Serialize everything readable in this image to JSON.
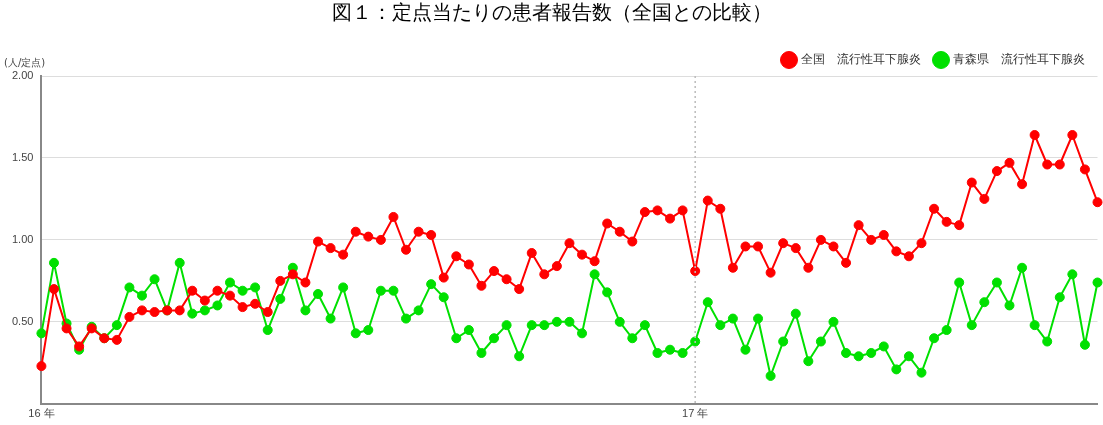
{
  "chart_data": {
    "type": "line",
    "title": "図１：定点当たりの患者報告数（全国との比較）",
    "ylabel": "(人/定点)",
    "categories": [
      "16 年",
      null,
      null,
      null,
      null,
      null,
      null,
      null,
      null,
      null,
      null,
      null,
      null,
      null,
      null,
      null,
      null,
      null,
      null,
      null,
      null,
      null,
      null,
      null,
      null,
      null,
      null,
      null,
      null,
      null,
      null,
      null,
      null,
      null,
      null,
      null,
      null,
      null,
      null,
      null,
      null,
      null,
      null,
      null,
      null,
      null,
      null,
      null,
      null,
      null,
      null,
      null,
      "17 年",
      null,
      null,
      null,
      null,
      null,
      null,
      null,
      null,
      null,
      null,
      null,
      null,
      null,
      null,
      null,
      null,
      null,
      null,
      null,
      null,
      null,
      null,
      null,
      null,
      null,
      null,
      null,
      null,
      null,
      null,
      null,
      null
    ],
    "series": [
      {
        "name": "全国　流行性耳下腺炎",
        "color": "#ff0000",
        "values": [
          0.23,
          0.7,
          0.46,
          0.35,
          0.46,
          0.4,
          0.39,
          0.53,
          0.57,
          0.56,
          0.57,
          0.57,
          0.69,
          0.63,
          0.69,
          0.66,
          0.59,
          0.61,
          0.56,
          0.75,
          0.79,
          0.74,
          0.99,
          0.95,
          0.91,
          1.05,
          1.02,
          1.0,
          1.14,
          0.94,
          1.05,
          1.03,
          0.77,
          0.9,
          0.85,
          0.72,
          0.81,
          0.76,
          0.7,
          0.92,
          0.79,
          0.84,
          0.98,
          0.91,
          0.87,
          1.1,
          1.05,
          0.99,
          1.17,
          1.18,
          1.13,
          1.18,
          0.81,
          1.24,
          1.19,
          0.83,
          0.96,
          0.96,
          0.8,
          0.98,
          0.95,
          0.83,
          1.0,
          0.96,
          0.86,
          1.09,
          1.0,
          1.03,
          0.93,
          0.9,
          0.98,
          1.19,
          1.11,
          1.09,
          1.35,
          1.25,
          1.42,
          1.47,
          1.34,
          1.64,
          1.46,
          1.46,
          1.64,
          1.43,
          1.23
        ]
      },
      {
        "name": "青森県　流行性耳下腺炎",
        "color": "#00e000",
        "values": [
          0.43,
          0.86,
          0.49,
          0.33,
          0.47,
          0.4,
          0.48,
          0.71,
          0.66,
          0.76,
          0.57,
          0.86,
          0.55,
          0.57,
          0.6,
          0.74,
          0.69,
          0.71,
          0.45,
          0.64,
          0.83,
          0.57,
          0.67,
          0.52,
          0.71,
          0.43,
          0.45,
          0.69,
          0.69,
          0.52,
          0.57,
          0.73,
          0.65,
          0.4,
          0.45,
          0.31,
          0.4,
          0.48,
          0.29,
          0.48,
          0.48,
          0.5,
          0.5,
          0.43,
          0.79,
          0.68,
          0.5,
          0.4,
          0.48,
          0.31,
          0.33,
          0.31,
          0.38,
          0.62,
          0.48,
          0.52,
          0.33,
          0.52,
          0.17,
          0.38,
          0.55,
          0.26,
          0.38,
          0.5,
          0.31,
          0.29,
          0.31,
          0.35,
          0.21,
          0.29,
          0.19,
          0.4,
          0.45,
          0.74,
          0.48,
          0.62,
          0.74,
          0.6,
          0.83,
          0.48,
          0.38,
          0.65,
          0.79,
          0.36,
          0.74
        ]
      }
    ],
    "ylim": [
      0,
      2
    ],
    "yticks": [
      {
        "value": 0.5,
        "label": "0.50"
      },
      {
        "value": 1,
        "label": "1.00"
      },
      {
        "value": 1.5,
        "label": "1.50"
      },
      {
        "value": 2,
        "label": "2.00"
      }
    ],
    "grid": "y",
    "legend": "top right",
    "marker": "circle",
    "line_style": "solid",
    "ref_lines": [
      {
        "axis": "x",
        "value": "17 年",
        "line_style": "dotted"
      }
    ]
  }
}
